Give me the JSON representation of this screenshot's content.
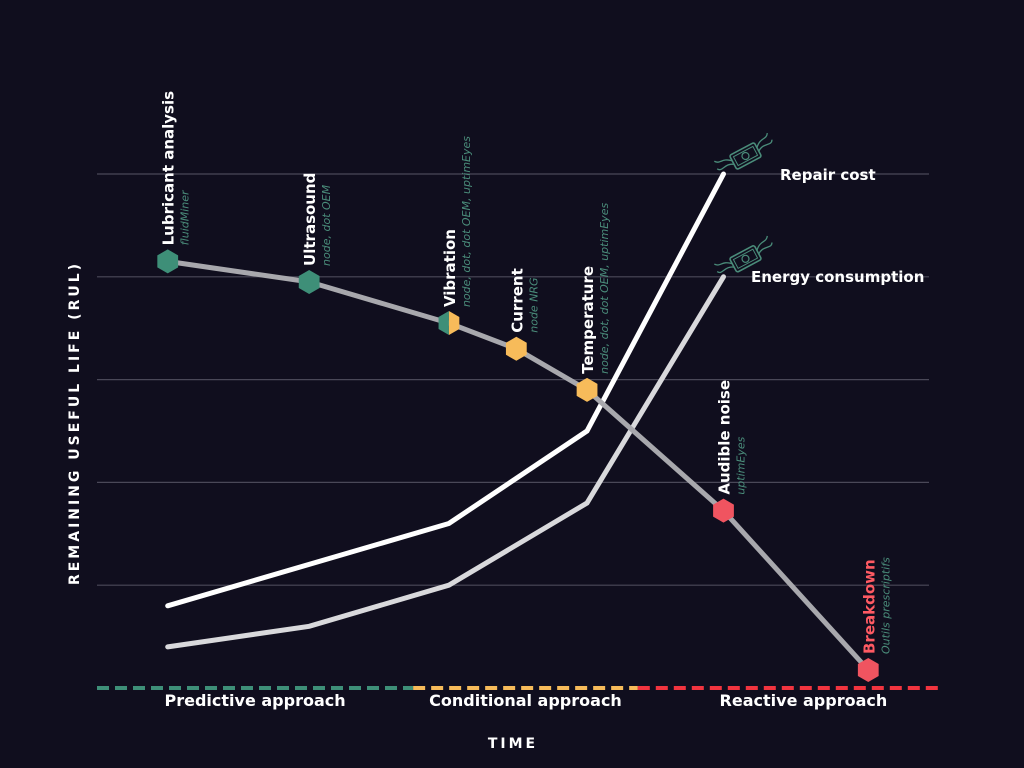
{
  "chart_data": {
    "type": "line",
    "xlabel": "TIME",
    "ylabel": "REMAINING USEFUL LIFE (RUL)",
    "xlim": [
      0,
      100
    ],
    "ylim": [
      0,
      100
    ],
    "grid": true,
    "approaches": [
      {
        "label": "Predictive approach",
        "color": "#3e8f78",
        "from": 0,
        "to": 38
      },
      {
        "label": "Conditional approach",
        "color": "#f7bb5a",
        "from": 38,
        "to": 65
      },
      {
        "label": "Reactive approach",
        "color": "#f2343f",
        "from": 65,
        "to": 100
      }
    ],
    "rul_series": {
      "color": "#a8a8ad",
      "points": [
        {
          "x": 8.5,
          "y": 83,
          "label": "Lubricant analysis",
          "sub": "fluidMiner",
          "color": "#3e8f78",
          "color2": "#3e8f78"
        },
        {
          "x": 25.5,
          "y": 79,
          "label": "Ultrasound",
          "sub": "node, dot OEM",
          "color": "#3e8f78",
          "color2": "#3e8f78"
        },
        {
          "x": 42.3,
          "y": 71,
          "label": "Vibration",
          "sub": "node, dot, dot OEM, uptimEyes",
          "color": "#3e8f78",
          "color2": "#f7bb5a"
        },
        {
          "x": 50.4,
          "y": 66,
          "label": "Current",
          "sub": "node NRG",
          "color": "#f7bb5a",
          "color2": "#f7bb5a"
        },
        {
          "x": 58.9,
          "y": 58,
          "label": "Temperature",
          "sub": "node, dot, dot OEM, uptimEyes",
          "color": "#f7bb5a",
          "color2": "#f7bb5a"
        },
        {
          "x": 75.3,
          "y": 34.5,
          "label": "Audible noise",
          "sub": "uptimEyes",
          "color": "#f05460",
          "color2": "#f05460"
        },
        {
          "x": 92.7,
          "y": 3.5,
          "label": "Breakdown",
          "sub": "Outils prescriptifs",
          "color": "#f05460",
          "color2": "#f05460",
          "label_color": "red"
        }
      ]
    },
    "series": [
      {
        "name": "Repair cost",
        "color": "#ffffff",
        "points": [
          [
            8.5,
            16
          ],
          [
            42.3,
            32
          ],
          [
            58.9,
            50
          ],
          [
            75.3,
            100
          ]
        ]
      },
      {
        "name": "Energy consumption",
        "color": "#d9d9dc",
        "points": [
          [
            8.5,
            8
          ],
          [
            25.5,
            12
          ],
          [
            42.3,
            20
          ],
          [
            58.9,
            36
          ],
          [
            75.3,
            80
          ]
        ]
      }
    ]
  }
}
